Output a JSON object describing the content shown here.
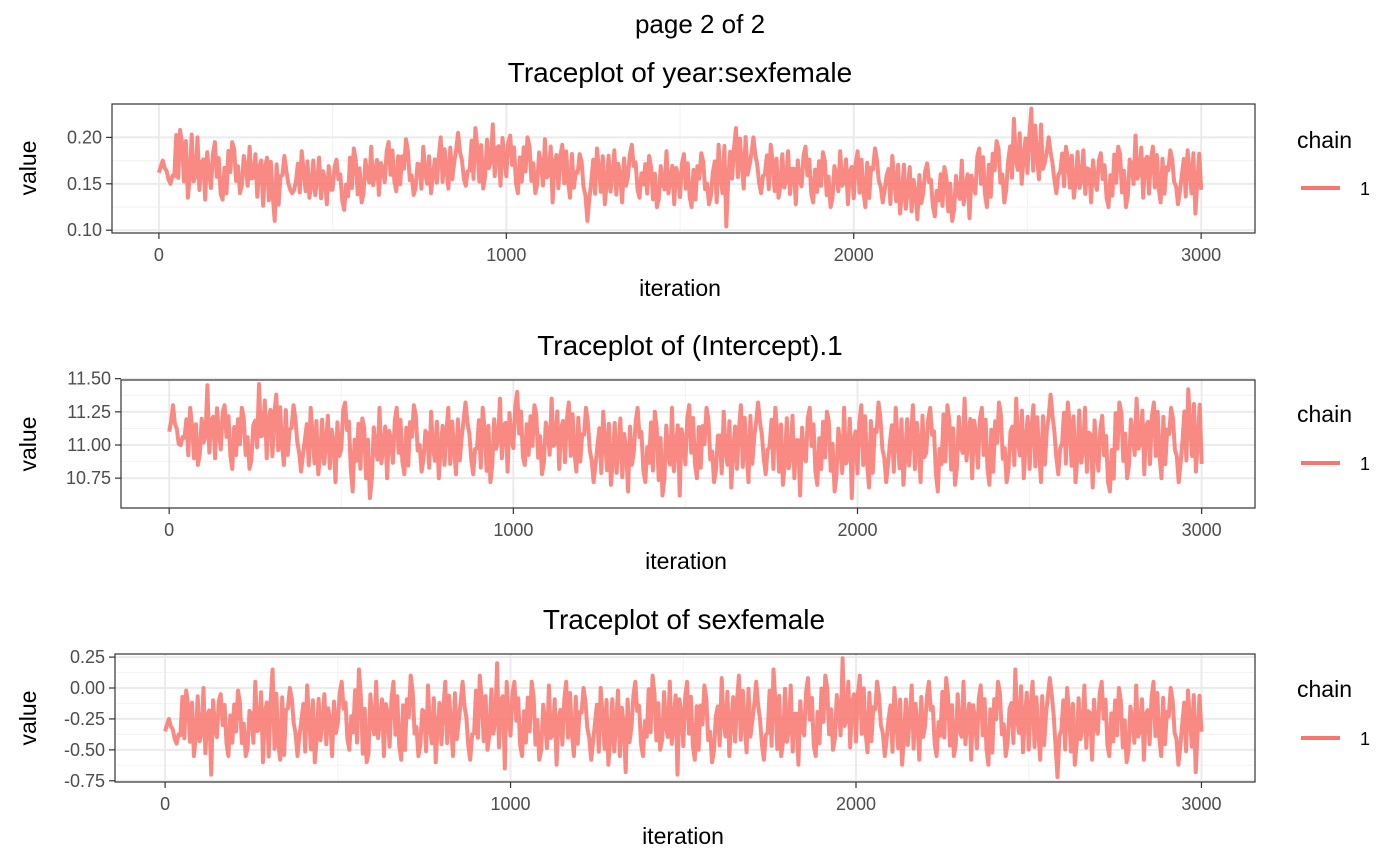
{
  "page": {
    "title": "page 2 of 2"
  },
  "colors": {
    "series": "#F8766D",
    "grid_major": "#EBEBEB",
    "grid_minor": "#F4F4F4",
    "panel_border": "#333333",
    "tick_text": "#4D4D4D"
  },
  "chart_data": [
    {
      "type": "line",
      "title": "Traceplot of  year:sexfemale",
      "xlabel": "iteration",
      "ylabel": "value",
      "xlim": [
        -135,
        3155
      ],
      "ylim": [
        0.097,
        0.236
      ],
      "x_ticks": [
        0,
        1000,
        2000,
        3000
      ],
      "x_tick_labels": [
        "0",
        "1000",
        "2000",
        "3000"
      ],
      "y_ticks": [
        0.1,
        0.15,
        0.2
      ],
      "y_tick_labels": [
        "0.10",
        "0.15",
        "0.20"
      ],
      "grid": true,
      "legend": {
        "title": "chain",
        "position": "right",
        "entries": [
          "1"
        ]
      },
      "series": [
        {
          "name": "1",
          "x": [
            0,
            50,
            100,
            150,
            200,
            250,
            300,
            350,
            400,
            450,
            500,
            550,
            600,
            650,
            700,
            750,
            800,
            850,
            900,
            950,
            1000,
            1050,
            1100,
            1150,
            1200,
            1250,
            1300,
            1350,
            1400,
            1450,
            1500,
            1550,
            1600,
            1650,
            1700,
            1750,
            1800,
            1850,
            1900,
            1950,
            2000,
            2050,
            2100,
            2150,
            2200,
            2250,
            2300,
            2350,
            2400,
            2450,
            2500,
            2550,
            2600,
            2650,
            2700,
            2750,
            2800,
            2850,
            2900,
            2950,
            3000
          ],
          "y": [
            0.162,
            0.178,
            0.165,
            0.16,
            0.168,
            0.164,
            0.15,
            0.153,
            0.158,
            0.152,
            0.15,
            0.158,
            0.162,
            0.168,
            0.165,
            0.162,
            0.17,
            0.172,
            0.175,
            0.18,
            0.172,
            0.17,
            0.168,
            0.165,
            0.152,
            0.16,
            0.158,
            0.163,
            0.152,
            0.155,
            0.153,
            0.155,
            0.16,
            0.178,
            0.168,
            0.162,
            0.158,
            0.16,
            0.155,
            0.158,
            0.155,
            0.158,
            0.15,
            0.14,
            0.145,
            0.14,
            0.145,
            0.158,
            0.165,
            0.18,
            0.188,
            0.17,
            0.165,
            0.158,
            0.155,
            0.16,
            0.168,
            0.16,
            0.158,
            0.16,
            0.152
          ],
          "y_min": [
            0.15,
            0.135,
            0.133,
            0.133,
            0.14,
            0.136,
            0.11,
            0.14,
            0.135,
            0.128,
            0.122,
            0.13,
            0.138,
            0.142,
            0.138,
            0.14,
            0.145,
            0.148,
            0.145,
            0.148,
            0.14,
            0.14,
            0.13,
            0.135,
            0.11,
            0.128,
            0.13,
            0.135,
            0.125,
            0.128,
            0.125,
            0.128,
            0.104,
            0.145,
            0.14,
            0.135,
            0.128,
            0.13,
            0.125,
            0.128,
            0.125,
            0.13,
            0.118,
            0.112,
            0.115,
            0.11,
            0.113,
            0.125,
            0.13,
            0.15,
            0.155,
            0.14,
            0.135,
            0.13,
            0.125,
            0.125,
            0.135,
            0.13,
            0.128,
            0.118,
            0.132
          ],
          "y_max": [
            0.175,
            0.208,
            0.2,
            0.195,
            0.195,
            0.19,
            0.178,
            0.18,
            0.185,
            0.178,
            0.176,
            0.188,
            0.19,
            0.195,
            0.198,
            0.19,
            0.2,
            0.205,
            0.21,
            0.214,
            0.202,
            0.2,
            0.198,
            0.192,
            0.182,
            0.188,
            0.186,
            0.192,
            0.18,
            0.185,
            0.182,
            0.183,
            0.192,
            0.21,
            0.2,
            0.192,
            0.185,
            0.19,
            0.184,
            0.185,
            0.185,
            0.188,
            0.18,
            0.168,
            0.172,
            0.168,
            0.175,
            0.188,
            0.196,
            0.22,
            0.231,
            0.2,
            0.19,
            0.186,
            0.183,
            0.19,
            0.202,
            0.19,
            0.186,
            0.186,
            0.16
          ]
        }
      ]
    },
    {
      "type": "line",
      "title": "Traceplot of  (Intercept).1",
      "xlabel": "iteration",
      "ylabel": "value",
      "xlim": [
        -140,
        3155
      ],
      "ylim": [
        10.525,
        11.49
      ],
      "x_ticks": [
        0,
        1000,
        2000,
        3000
      ],
      "x_tick_labels": [
        "0",
        "1000",
        "2000",
        "3000"
      ],
      "y_ticks": [
        10.75,
        11.0,
        11.25,
        11.5
      ],
      "y_tick_labels": [
        "10.75",
        "11.00",
        "11.25",
        "11.50"
      ],
      "grid": true,
      "legend": {
        "title": "chain",
        "position": "right",
        "entries": [
          "1"
        ]
      },
      "series": [
        {
          "name": "1",
          "x": [
            0,
            50,
            100,
            150,
            200,
            250,
            300,
            350,
            400,
            450,
            500,
            550,
            600,
            650,
            700,
            750,
            800,
            850,
            900,
            950,
            1000,
            1050,
            1100,
            1150,
            1200,
            1250,
            1300,
            1350,
            1400,
            1450,
            1500,
            1550,
            1600,
            1650,
            1700,
            1750,
            1800,
            1850,
            1900,
            1950,
            2000,
            2050,
            2100,
            2150,
            2200,
            2250,
            2300,
            2350,
            2400,
            2450,
            2500,
            2550,
            2600,
            2650,
            2700,
            2750,
            2800,
            2850,
            2900,
            2950,
            3000
          ],
          "y": [
            11.1,
            11.05,
            11.12,
            11.08,
            11.05,
            11.15,
            11.1,
            11.05,
            11.02,
            11.0,
            11.05,
            10.95,
            11.0,
            11.02,
            11.05,
            11.0,
            11.02,
            11.05,
            11.0,
            11.08,
            11.1,
            11.05,
            11.08,
            11.05,
            11.0,
            10.98,
            10.95,
            11.0,
            10.95,
            10.98,
            11.02,
            11.0,
            10.98,
            11.02,
            11.05,
            11.0,
            10.95,
            11.0,
            10.98,
            10.98,
            11.0,
            11.02,
            11.0,
            11.02,
            11.0,
            11.02,
            11.05,
            11.0,
            11.02,
            11.05,
            11.02,
            11.08,
            11.05,
            11.0,
            10.92,
            11.05,
            11.08,
            11.05,
            11.02,
            11.1,
            10.95
          ],
          "y_min": [
            11.0,
            10.85,
            10.9,
            10.82,
            10.82,
            10.9,
            10.85,
            10.8,
            10.78,
            10.72,
            10.65,
            10.6,
            10.75,
            10.78,
            10.8,
            10.75,
            10.78,
            10.78,
            10.72,
            10.8,
            10.85,
            10.78,
            10.82,
            10.8,
            10.72,
            10.7,
            10.65,
            10.72,
            10.62,
            10.62,
            10.75,
            10.72,
            10.68,
            10.72,
            10.78,
            10.7,
            10.62,
            10.7,
            10.65,
            10.6,
            10.68,
            10.72,
            10.7,
            10.72,
            10.65,
            10.7,
            10.75,
            10.7,
            10.72,
            10.75,
            10.72,
            10.78,
            10.72,
            10.68,
            10.65,
            10.75,
            10.78,
            10.75,
            10.72,
            10.8,
            10.85
          ],
          "y_max": [
            11.3,
            11.28,
            11.45,
            11.3,
            11.28,
            11.46,
            11.38,
            11.3,
            11.28,
            11.22,
            11.32,
            11.2,
            11.28,
            11.28,
            11.3,
            11.25,
            11.28,
            11.32,
            11.28,
            11.35,
            11.4,
            11.3,
            11.35,
            11.32,
            11.28,
            11.25,
            11.2,
            11.28,
            11.25,
            11.28,
            11.3,
            11.28,
            11.25,
            11.3,
            11.32,
            11.28,
            11.22,
            11.28,
            11.25,
            11.28,
            11.3,
            11.32,
            11.28,
            11.3,
            11.28,
            11.3,
            11.35,
            11.28,
            11.32,
            11.35,
            11.3,
            11.38,
            11.32,
            11.28,
            11.22,
            11.32,
            11.35,
            11.32,
            11.28,
            11.42,
            11.15
          ]
        }
      ]
    },
    {
      "type": "line",
      "title": "Traceplot of  sexfemale",
      "xlabel": "iteration",
      "ylabel": "value",
      "xlim": [
        -145,
        3155
      ],
      "ylim": [
        -0.76,
        0.275
      ],
      "x_ticks": [
        0,
        1000,
        2000,
        3000
      ],
      "x_tick_labels": [
        "0",
        "1000",
        "2000",
        "3000"
      ],
      "y_ticks": [
        -0.75,
        -0.5,
        -0.25,
        0.0,
        0.25
      ],
      "y_tick_labels": [
        "-0.75",
        "-0.50",
        "-0.25",
        "0.00",
        "0.25"
      ],
      "grid": true,
      "legend": {
        "title": "chain",
        "position": "right",
        "entries": [
          "1"
        ]
      },
      "series": [
        {
          "name": "1",
          "x": [
            0,
            50,
            100,
            150,
            200,
            250,
            300,
            350,
            400,
            450,
            500,
            550,
            600,
            650,
            700,
            750,
            800,
            850,
            900,
            950,
            1000,
            1050,
            1100,
            1150,
            1200,
            1250,
            1300,
            1350,
            1400,
            1450,
            1500,
            1550,
            1600,
            1650,
            1700,
            1750,
            1800,
            1850,
            1900,
            1950,
            2000,
            2050,
            2100,
            2150,
            2200,
            2250,
            2300,
            2350,
            2400,
            2450,
            2500,
            2550,
            2600,
            2650,
            2700,
            2750,
            2800,
            2850,
            2900,
            2950,
            3000
          ],
          "y": [
            -0.35,
            -0.25,
            -0.3,
            -0.28,
            -0.3,
            -0.25,
            -0.3,
            -0.25,
            -0.3,
            -0.28,
            -0.22,
            -0.28,
            -0.25,
            -0.28,
            -0.25,
            -0.3,
            -0.25,
            -0.28,
            -0.22,
            -0.2,
            -0.25,
            -0.28,
            -0.3,
            -0.25,
            -0.28,
            -0.3,
            -0.32,
            -0.25,
            -0.22,
            -0.25,
            -0.28,
            -0.3,
            -0.25,
            -0.22,
            -0.28,
            -0.25,
            -0.3,
            -0.25,
            -0.2,
            -0.18,
            -0.22,
            -0.25,
            -0.3,
            -0.28,
            -0.25,
            -0.25,
            -0.28,
            -0.3,
            -0.25,
            -0.22,
            -0.28,
            -0.25,
            -0.3,
            -0.28,
            -0.25,
            -0.3,
            -0.28,
            -0.25,
            -0.3,
            -0.28,
            -0.2
          ],
          "y_min": [
            -0.45,
            -0.55,
            -0.7,
            -0.55,
            -0.55,
            -0.6,
            -0.58,
            -0.55,
            -0.6,
            -0.55,
            -0.5,
            -0.6,
            -0.55,
            -0.58,
            -0.55,
            -0.6,
            -0.55,
            -0.58,
            -0.5,
            -0.65,
            -0.55,
            -0.58,
            -0.62,
            -0.55,
            -0.58,
            -0.62,
            -0.68,
            -0.55,
            -0.5,
            -0.7,
            -0.58,
            -0.6,
            -0.55,
            -0.52,
            -0.58,
            -0.55,
            -0.62,
            -0.55,
            -0.5,
            -0.48,
            -0.52,
            -0.55,
            -0.62,
            -0.58,
            -0.55,
            -0.55,
            -0.58,
            -0.62,
            -0.55,
            -0.52,
            -0.58,
            -0.72,
            -0.62,
            -0.58,
            -0.55,
            -0.6,
            -0.58,
            -0.55,
            -0.62,
            -0.68,
            -0.45
          ],
          "y_max": [
            -0.25,
            -0.02,
            0.0,
            -0.05,
            -0.02,
            0.05,
            0.15,
            0.0,
            0.02,
            -0.05,
            0.05,
            0.15,
            0.05,
            0.05,
            0.1,
            0.02,
            0.05,
            0.05,
            0.1,
            0.2,
            0.05,
            0.05,
            0.02,
            0.05,
            0.0,
            0.0,
            -0.02,
            0.05,
            0.1,
            0.05,
            0.05,
            0.02,
            0.08,
            0.1,
            0.05,
            0.15,
            0.02,
            0.08,
            0.1,
            0.24,
            0.1,
            0.05,
            0.0,
            0.02,
            0.05,
            0.08,
            0.05,
            0.02,
            0.05,
            0.15,
            0.05,
            0.08,
            0.0,
            0.02,
            0.05,
            0.0,
            0.02,
            0.05,
            0.0,
            -0.02,
            0.05
          ]
        }
      ]
    }
  ]
}
